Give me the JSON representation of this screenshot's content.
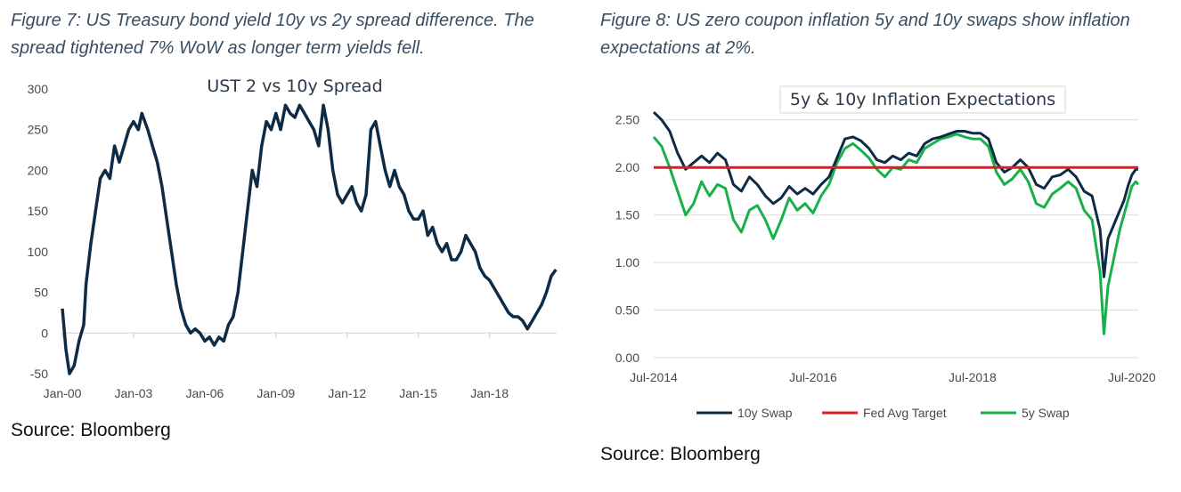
{
  "figure7": {
    "caption": "Figure 7: US Treasury bond yield 10y vs 2y spread difference. The spread tightened 7% WoW as longer term yields fell.",
    "source": "Source: Bloomberg"
  },
  "figure8": {
    "caption": "Figure 8: US zero coupon inflation 5y and 10y swaps show inflation expectations at 2%.",
    "source": "Source: Bloomberg"
  },
  "colors": {
    "navy": "#0d2b45",
    "red": "#e41a1c",
    "green": "#18b04b",
    "caption": "#3a4f64"
  },
  "chart_data": [
    {
      "type": "line",
      "title": "UST 2 vs 10y Spread",
      "xlabel": "",
      "ylabel": "",
      "ylim": [
        -50,
        300
      ],
      "yticks": [
        -50,
        0,
        50,
        100,
        150,
        200,
        250,
        300
      ],
      "xlim": [
        2000.0,
        2020.83
      ],
      "xticks": [
        2000,
        2003,
        2006,
        2009,
        2012,
        2015,
        2018
      ],
      "xtick_labels": [
        "Jan-00",
        "Jan-03",
        "Jan-06",
        "Jan-09",
        "Jan-12",
        "Jan-15",
        "Jan-18"
      ],
      "grid": false,
      "series": [
        {
          "color": "#0d2b45",
          "x": [
            2000.0,
            2000.15,
            2000.3,
            2000.5,
            2000.7,
            2000.9,
            2001.0,
            2001.2,
            2001.4,
            2001.6,
            2001.8,
            2002.0,
            2002.2,
            2002.4,
            2002.6,
            2002.8,
            2003.0,
            2003.2,
            2003.35,
            2003.6,
            2003.8,
            2004.0,
            2004.2,
            2004.4,
            2004.6,
            2004.8,
            2005.0,
            2005.2,
            2005.4,
            2005.6,
            2005.8,
            2006.0,
            2006.2,
            2006.4,
            2006.6,
            2006.8,
            2007.0,
            2007.2,
            2007.4,
            2007.6,
            2007.8,
            2008.0,
            2008.2,
            2008.4,
            2008.6,
            2008.8,
            2009.0,
            2009.2,
            2009.4,
            2009.6,
            2009.8,
            2010.0,
            2010.2,
            2010.4,
            2010.6,
            2010.8,
            2011.0,
            2011.2,
            2011.4,
            2011.6,
            2011.8,
            2012.0,
            2012.2,
            2012.4,
            2012.6,
            2012.8,
            2013.0,
            2013.2,
            2013.4,
            2013.6,
            2013.8,
            2014.0,
            2014.2,
            2014.4,
            2014.6,
            2014.8,
            2015.0,
            2015.2,
            2015.4,
            2015.6,
            2015.8,
            2016.0,
            2016.2,
            2016.4,
            2016.6,
            2016.8,
            2017.0,
            2017.2,
            2017.4,
            2017.6,
            2017.8,
            2018.0,
            2018.2,
            2018.4,
            2018.6,
            2018.8,
            2019.0,
            2019.2,
            2019.4,
            2019.6,
            2019.8,
            2020.0,
            2020.2,
            2020.4,
            2020.6,
            2020.8
          ],
          "y": [
            30,
            -20,
            -50,
            -40,
            -10,
            10,
            60,
            110,
            150,
            190,
            200,
            190,
            230,
            210,
            230,
            250,
            260,
            250,
            270,
            250,
            230,
            210,
            180,
            140,
            100,
            60,
            30,
            10,
            0,
            5,
            0,
            -10,
            -5,
            -15,
            -5,
            -10,
            10,
            20,
            50,
            100,
            150,
            200,
            180,
            230,
            260,
            250,
            270,
            250,
            280,
            270,
            265,
            280,
            270,
            260,
            250,
            230,
            280,
            250,
            200,
            170,
            160,
            170,
            180,
            160,
            150,
            170,
            250,
            260,
            230,
            200,
            180,
            200,
            180,
            170,
            150,
            140,
            140,
            150,
            120,
            130,
            110,
            100,
            110,
            90,
            90,
            100,
            120,
            110,
            100,
            80,
            70,
            65,
            55,
            45,
            35,
            25,
            20,
            20,
            15,
            5,
            15,
            25,
            35,
            50,
            70,
            78
          ]
        }
      ]
    },
    {
      "type": "line",
      "title": "5y & 10y Inflation Expectations",
      "xlabel": "",
      "ylabel": "",
      "ylim": [
        0,
        2.6
      ],
      "yticks": [
        0.0,
        0.5,
        1.0,
        1.5,
        2.0,
        2.5
      ],
      "ytick_labels": [
        "0.00",
        "0.50",
        "1.00",
        "1.50",
        "2.00",
        "2.50"
      ],
      "xlim": [
        2014.5,
        2020.58
      ],
      "xticks": [
        2014.5,
        2016.5,
        2018.5,
        2020.5
      ],
      "xtick_labels": [
        "Jul-2014",
        "Jul-2016",
        "Jul-2018",
        "Jul-2020"
      ],
      "grid": true,
      "legend": "bottom",
      "series": [
        {
          "name": "10y Swap",
          "color": "#0d2b45",
          "x": [
            2014.5,
            2014.6,
            2014.7,
            2014.8,
            2014.9,
            2015.0,
            2015.1,
            2015.2,
            2015.3,
            2015.4,
            2015.5,
            2015.6,
            2015.7,
            2015.8,
            2015.9,
            2016.0,
            2016.1,
            2016.2,
            2016.3,
            2016.4,
            2016.5,
            2016.6,
            2016.7,
            2016.8,
            2016.9,
            2017.0,
            2017.1,
            2017.2,
            2017.3,
            2017.4,
            2017.5,
            2017.6,
            2017.7,
            2017.8,
            2017.9,
            2018.0,
            2018.1,
            2018.2,
            2018.3,
            2018.4,
            2018.5,
            2018.6,
            2018.7,
            2018.8,
            2018.9,
            2019.0,
            2019.1,
            2019.2,
            2019.3,
            2019.4,
            2019.5,
            2019.6,
            2019.7,
            2019.8,
            2019.9,
            2020.0,
            2020.1,
            2020.15,
            2020.2,
            2020.25,
            2020.3,
            2020.35,
            2020.4,
            2020.45,
            2020.5,
            2020.55,
            2020.58
          ],
          "y": [
            2.58,
            2.5,
            2.38,
            2.15,
            1.98,
            2.05,
            2.12,
            2.05,
            2.15,
            2.08,
            1.82,
            1.75,
            1.9,
            1.82,
            1.7,
            1.62,
            1.68,
            1.8,
            1.72,
            1.78,
            1.72,
            1.82,
            1.9,
            2.1,
            2.3,
            2.32,
            2.28,
            2.2,
            2.08,
            2.05,
            2.12,
            2.08,
            2.15,
            2.12,
            2.25,
            2.3,
            2.32,
            2.35,
            2.38,
            2.38,
            2.36,
            2.36,
            2.3,
            2.05,
            1.95,
            2.0,
            2.08,
            2.0,
            1.82,
            1.78,
            1.9,
            1.92,
            1.98,
            1.9,
            1.75,
            1.7,
            1.35,
            0.85,
            1.25,
            1.35,
            1.45,
            1.55,
            1.65,
            1.8,
            1.92,
            1.98,
            1.98
          ]
        },
        {
          "name": "Fed Avg Target",
          "color": "#e41a1c",
          "x": [
            2014.5,
            2020.58
          ],
          "y": [
            2.0,
            2.0
          ]
        },
        {
          "name": "5y Swap",
          "color": "#18b04b",
          "x": [
            2014.5,
            2014.6,
            2014.7,
            2014.8,
            2014.9,
            2015.0,
            2015.1,
            2015.2,
            2015.3,
            2015.4,
            2015.5,
            2015.6,
            2015.7,
            2015.8,
            2015.9,
            2016.0,
            2016.1,
            2016.2,
            2016.3,
            2016.4,
            2016.5,
            2016.6,
            2016.7,
            2016.8,
            2016.9,
            2017.0,
            2017.1,
            2017.2,
            2017.3,
            2017.4,
            2017.5,
            2017.6,
            2017.7,
            2017.8,
            2017.9,
            2018.0,
            2018.1,
            2018.2,
            2018.3,
            2018.4,
            2018.5,
            2018.6,
            2018.7,
            2018.8,
            2018.9,
            2019.0,
            2019.1,
            2019.2,
            2019.3,
            2019.4,
            2019.5,
            2019.6,
            2019.7,
            2019.8,
            2019.9,
            2020.0,
            2020.1,
            2020.15,
            2020.2,
            2020.25,
            2020.3,
            2020.35,
            2020.4,
            2020.45,
            2020.5,
            2020.55,
            2020.58
          ],
          "y": [
            2.32,
            2.22,
            2.0,
            1.75,
            1.5,
            1.62,
            1.85,
            1.7,
            1.82,
            1.78,
            1.45,
            1.32,
            1.55,
            1.6,
            1.45,
            1.25,
            1.45,
            1.68,
            1.55,
            1.62,
            1.52,
            1.7,
            1.82,
            2.05,
            2.2,
            2.25,
            2.18,
            2.1,
            1.98,
            1.9,
            2.0,
            1.98,
            2.08,
            2.05,
            2.2,
            2.25,
            2.3,
            2.32,
            2.35,
            2.32,
            2.3,
            2.3,
            2.22,
            1.95,
            1.82,
            1.88,
            1.98,
            1.85,
            1.62,
            1.58,
            1.72,
            1.78,
            1.85,
            1.78,
            1.55,
            1.45,
            0.9,
            0.25,
            0.75,
            0.95,
            1.15,
            1.35,
            1.5,
            1.65,
            1.8,
            1.85,
            1.82
          ]
        }
      ]
    }
  ]
}
